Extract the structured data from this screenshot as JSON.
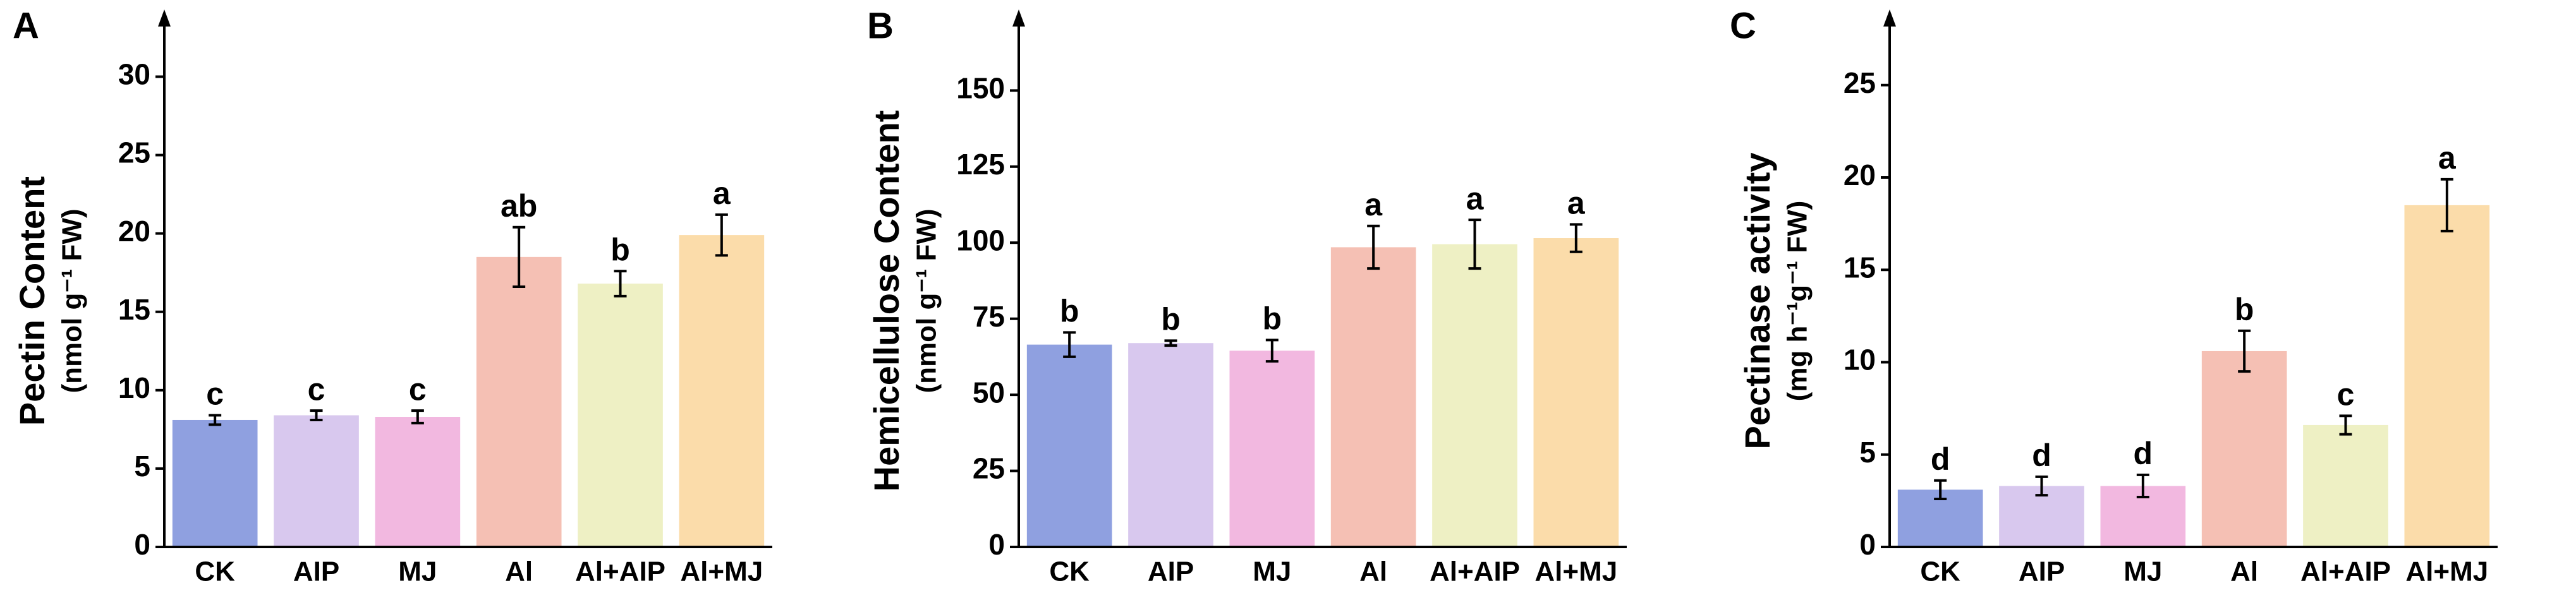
{
  "chart_data": [
    {
      "type": "bar",
      "panel_label": "A",
      "ylabel": "Pectin Content",
      "ylabel_unit": "(nmol g⁻¹ FW)",
      "categories": [
        "CK",
        "AIP",
        "MJ",
        "Al",
        "Al+AIP",
        "Al+MJ"
      ],
      "values": [
        8.1,
        8.4,
        8.3,
        18.5,
        16.8,
        19.9
      ],
      "errors": [
        0.3,
        0.3,
        0.4,
        1.9,
        0.8,
        1.3
      ],
      "letters": [
        "c",
        "c",
        "c",
        "ab",
        "b",
        "a"
      ],
      "colors": [
        "#8fa0e0",
        "#d8c8ee",
        "#f2b8e0",
        "#f5c0b4",
        "#eef0c4",
        "#fbdcaa"
      ],
      "ylim": [
        0,
        33
      ],
      "yticks": [
        0,
        5,
        10,
        15,
        20,
        25,
        30
      ]
    },
    {
      "type": "bar",
      "panel_label": "B",
      "ylabel": "Hemicellulose Content",
      "ylabel_unit": "(nmol g⁻¹ FW)",
      "categories": [
        "CK",
        "AIP",
        "MJ",
        "Al",
        "Al+AIP",
        "Al+MJ"
      ],
      "values": [
        66.5,
        67,
        64.5,
        98.5,
        99.5,
        101.5
      ],
      "errors": [
        4,
        0.8,
        3.5,
        7,
        8,
        4.5
      ],
      "letters": [
        "b",
        "b",
        "b",
        "a",
        "a",
        "a"
      ],
      "colors": [
        "#8fa0e0",
        "#d8c8ee",
        "#f2b8e0",
        "#f5c0b4",
        "#eef0c4",
        "#fbdcaa"
      ],
      "ylim": [
        0,
        170
      ],
      "yticks": [
        0,
        25,
        50,
        75,
        100,
        125,
        150
      ]
    },
    {
      "type": "bar",
      "panel_label": "C",
      "ylabel": "Pectinase activity",
      "ylabel_unit": "(mg h⁻¹g⁻¹ FW)",
      "categories": [
        "CK",
        "AIP",
        "MJ",
        "Al",
        "Al+AIP",
        "Al+MJ"
      ],
      "values": [
        3.1,
        3.3,
        3.3,
        10.6,
        6.6,
        18.5
      ],
      "errors": [
        0.5,
        0.5,
        0.6,
        1.1,
        0.5,
        1.4
      ],
      "letters": [
        "d",
        "d",
        "d",
        "b",
        "c",
        "a"
      ],
      "colors": [
        "#8fa0e0",
        "#d8c8ee",
        "#f2b8e0",
        "#f5c0b4",
        "#eef0c4",
        "#fbdcaa"
      ],
      "ylim": [
        0,
        28
      ],
      "yticks": [
        0,
        5,
        10,
        15,
        20,
        25
      ]
    }
  ]
}
